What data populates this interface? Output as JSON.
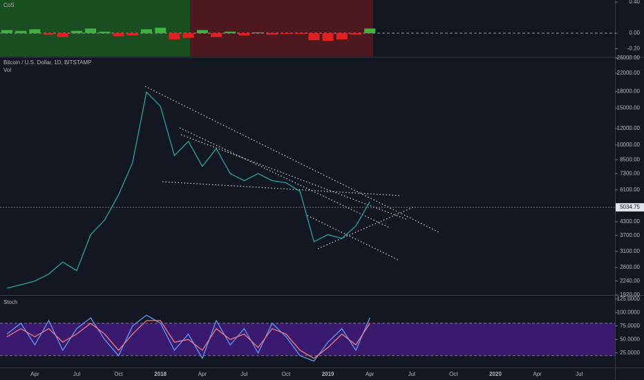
{
  "chart_data": [
    {
      "type": "bar",
      "title": "CoS",
      "categories": [
        "2017-02",
        "2017-03",
        "2017-04",
        "2017-05",
        "2017-06",
        "2017-07",
        "2017-08",
        "2017-09",
        "2017-10",
        "2017-11",
        "2017-12",
        "2018-01",
        "2018-02",
        "2018-03",
        "2018-04",
        "2018-05",
        "2018-06",
        "2018-07",
        "2018-08",
        "2018-09",
        "2018-10",
        "2018-11",
        "2018-12",
        "2019-01",
        "2019-02",
        "2019-03",
        "2019-04"
      ],
      "values": [
        0.04,
        0.03,
        0.05,
        -0.02,
        -0.05,
        0.03,
        0.06,
        0.02,
        -0.04,
        -0.03,
        0.05,
        0.07,
        -0.08,
        -0.06,
        0.04,
        -0.05,
        0.02,
        -0.03,
        0.01,
        -0.02,
        -0.01,
        -0.01,
        -0.09,
        -0.1,
        -0.08,
        -0.02,
        0.06
      ],
      "colors": {
        "positive": "#3fb33f",
        "negative": "#e02020"
      },
      "ylim": [
        -0.302,
        0.427
      ],
      "yticks": [
        {
          "value": 0.4,
          "label": "0.40"
        },
        {
          "value": 0,
          "label": "0.00"
        },
        {
          "value": -0.2,
          "label": "-0.20"
        }
      ]
    },
    {
      "type": "line",
      "title": "Bitcoin / U.S. Dollar, 1D, BITSTAMP",
      "subtitle": "Vol",
      "categories": [
        "2017-02",
        "2017-03",
        "2017-04",
        "2017-05",
        "2017-06",
        "2017-07",
        "2017-08",
        "2017-09",
        "2017-10",
        "2017-11",
        "2017-12",
        "2018-01",
        "2018-02",
        "2018-03",
        "2018-04",
        "2018-05",
        "2018-06",
        "2018-07",
        "2018-08",
        "2018-09",
        "2018-10",
        "2018-11",
        "2018-12",
        "2019-01",
        "2019-02",
        "2019-03",
        "2019-04"
      ],
      "series": [
        {
          "color": "#26a69a",
          "values": [
            2070,
            2150,
            2240,
            2420,
            2760,
            2510,
            3730,
            4380,
            5780,
            8220,
            17880,
            15300,
            8900,
            10400,
            7900,
            9600,
            7300,
            6750,
            7300,
            6750,
            6600,
            6000,
            3450,
            3730,
            3580,
            4100,
            5350
          ]
        }
      ],
      "log": true,
      "ylim": [
        1920,
        26000
      ],
      "yticks": [
        {
          "value": 26000,
          "label": "26000.00"
        },
        {
          "value": 22000,
          "label": "22000.00"
        },
        {
          "value": 18000,
          "label": "18000.00"
        },
        {
          "value": 15000,
          "label": "15000.00"
        },
        {
          "value": 12000,
          "label": "12000.00"
        },
        {
          "value": 10000,
          "label": "10000.00"
        },
        {
          "value": 8500,
          "label": "8500.00"
        },
        {
          "value": 7300,
          "label": "7300.00"
        },
        {
          "value": 6100,
          "label": "6100.00"
        },
        {
          "value": 4300,
          "label": "4300.00"
        },
        {
          "value": 3700,
          "label": "3700.00"
        },
        {
          "value": 3100,
          "label": "3100.00"
        },
        {
          "value": 2600,
          "label": "2600.00"
        },
        {
          "value": 2240,
          "label": "2240.00"
        },
        {
          "value": 1920,
          "label": "1920.00"
        }
      ],
      "last_price": {
        "value": 5034.75,
        "label": "5034.75"
      },
      "xticks": [
        {
          "value": "2017-04",
          "label": "Apr"
        },
        {
          "value": "2017-07",
          "label": "Jul"
        },
        {
          "value": "2017-10",
          "label": "Oct"
        },
        {
          "value": "2018-01",
          "label": "2018"
        },
        {
          "value": "2018-04",
          "label": "Apr"
        },
        {
          "value": "2018-07",
          "label": "Jul"
        },
        {
          "value": "2018-10",
          "label": "Oct"
        },
        {
          "value": "2019-01",
          "label": "2019"
        },
        {
          "value": "2019-04",
          "label": "Apr"
        },
        {
          "value": "2019-07",
          "label": "Jul"
        },
        {
          "value": "2019-10",
          "label": "Oct"
        },
        {
          "value": "2020-01",
          "label": "2020"
        },
        {
          "value": "2020-04",
          "label": "Apr"
        },
        {
          "value": "2020-07",
          "label": "Jul"
        }
      ]
    },
    {
      "type": "line",
      "title": "Stoch",
      "categories": [
        "2017-02",
        "2017-03",
        "2017-04",
        "2017-05",
        "2017-06",
        "2017-07",
        "2017-08",
        "2017-09",
        "2017-10",
        "2017-11",
        "2017-12",
        "2018-01",
        "2018-02",
        "2018-03",
        "2018-04",
        "2018-05",
        "2018-06",
        "2018-07",
        "2018-08",
        "2018-09",
        "2018-10",
        "2018-11",
        "2018-12",
        "2019-01",
        "2019-02",
        "2019-03",
        "2019-04"
      ],
      "series": [
        {
          "color": "#5b9cf6",
          "values": [
            60,
            80,
            40,
            85,
            30,
            70,
            90,
            50,
            20,
            75,
            95,
            80,
            30,
            60,
            15,
            85,
            40,
            70,
            25,
            80,
            55,
            20,
            10,
            45,
            70,
            30,
            90
          ]
        },
        {
          "color": "#f77c80",
          "values": [
            55,
            70,
            55,
            70,
            45,
            60,
            80,
            60,
            30,
            60,
            85,
            85,
            45,
            50,
            30,
            70,
            50,
            60,
            35,
            70,
            60,
            30,
            15,
            35,
            60,
            40,
            80
          ]
        }
      ],
      "band": [
        20,
        80
      ],
      "band_color": "#3a1a6e",
      "ylim": [
        -2,
        131
      ],
      "yticks": [
        {
          "value": 125,
          "label": "125.0000"
        },
        {
          "value": 100,
          "label": "100.0000"
        },
        {
          "value": 75,
          "label": "75.0000"
        },
        {
          "value": 50,
          "label": "50.0000"
        },
        {
          "value": 25,
          "label": "25.0000"
        }
      ]
    }
  ]
}
